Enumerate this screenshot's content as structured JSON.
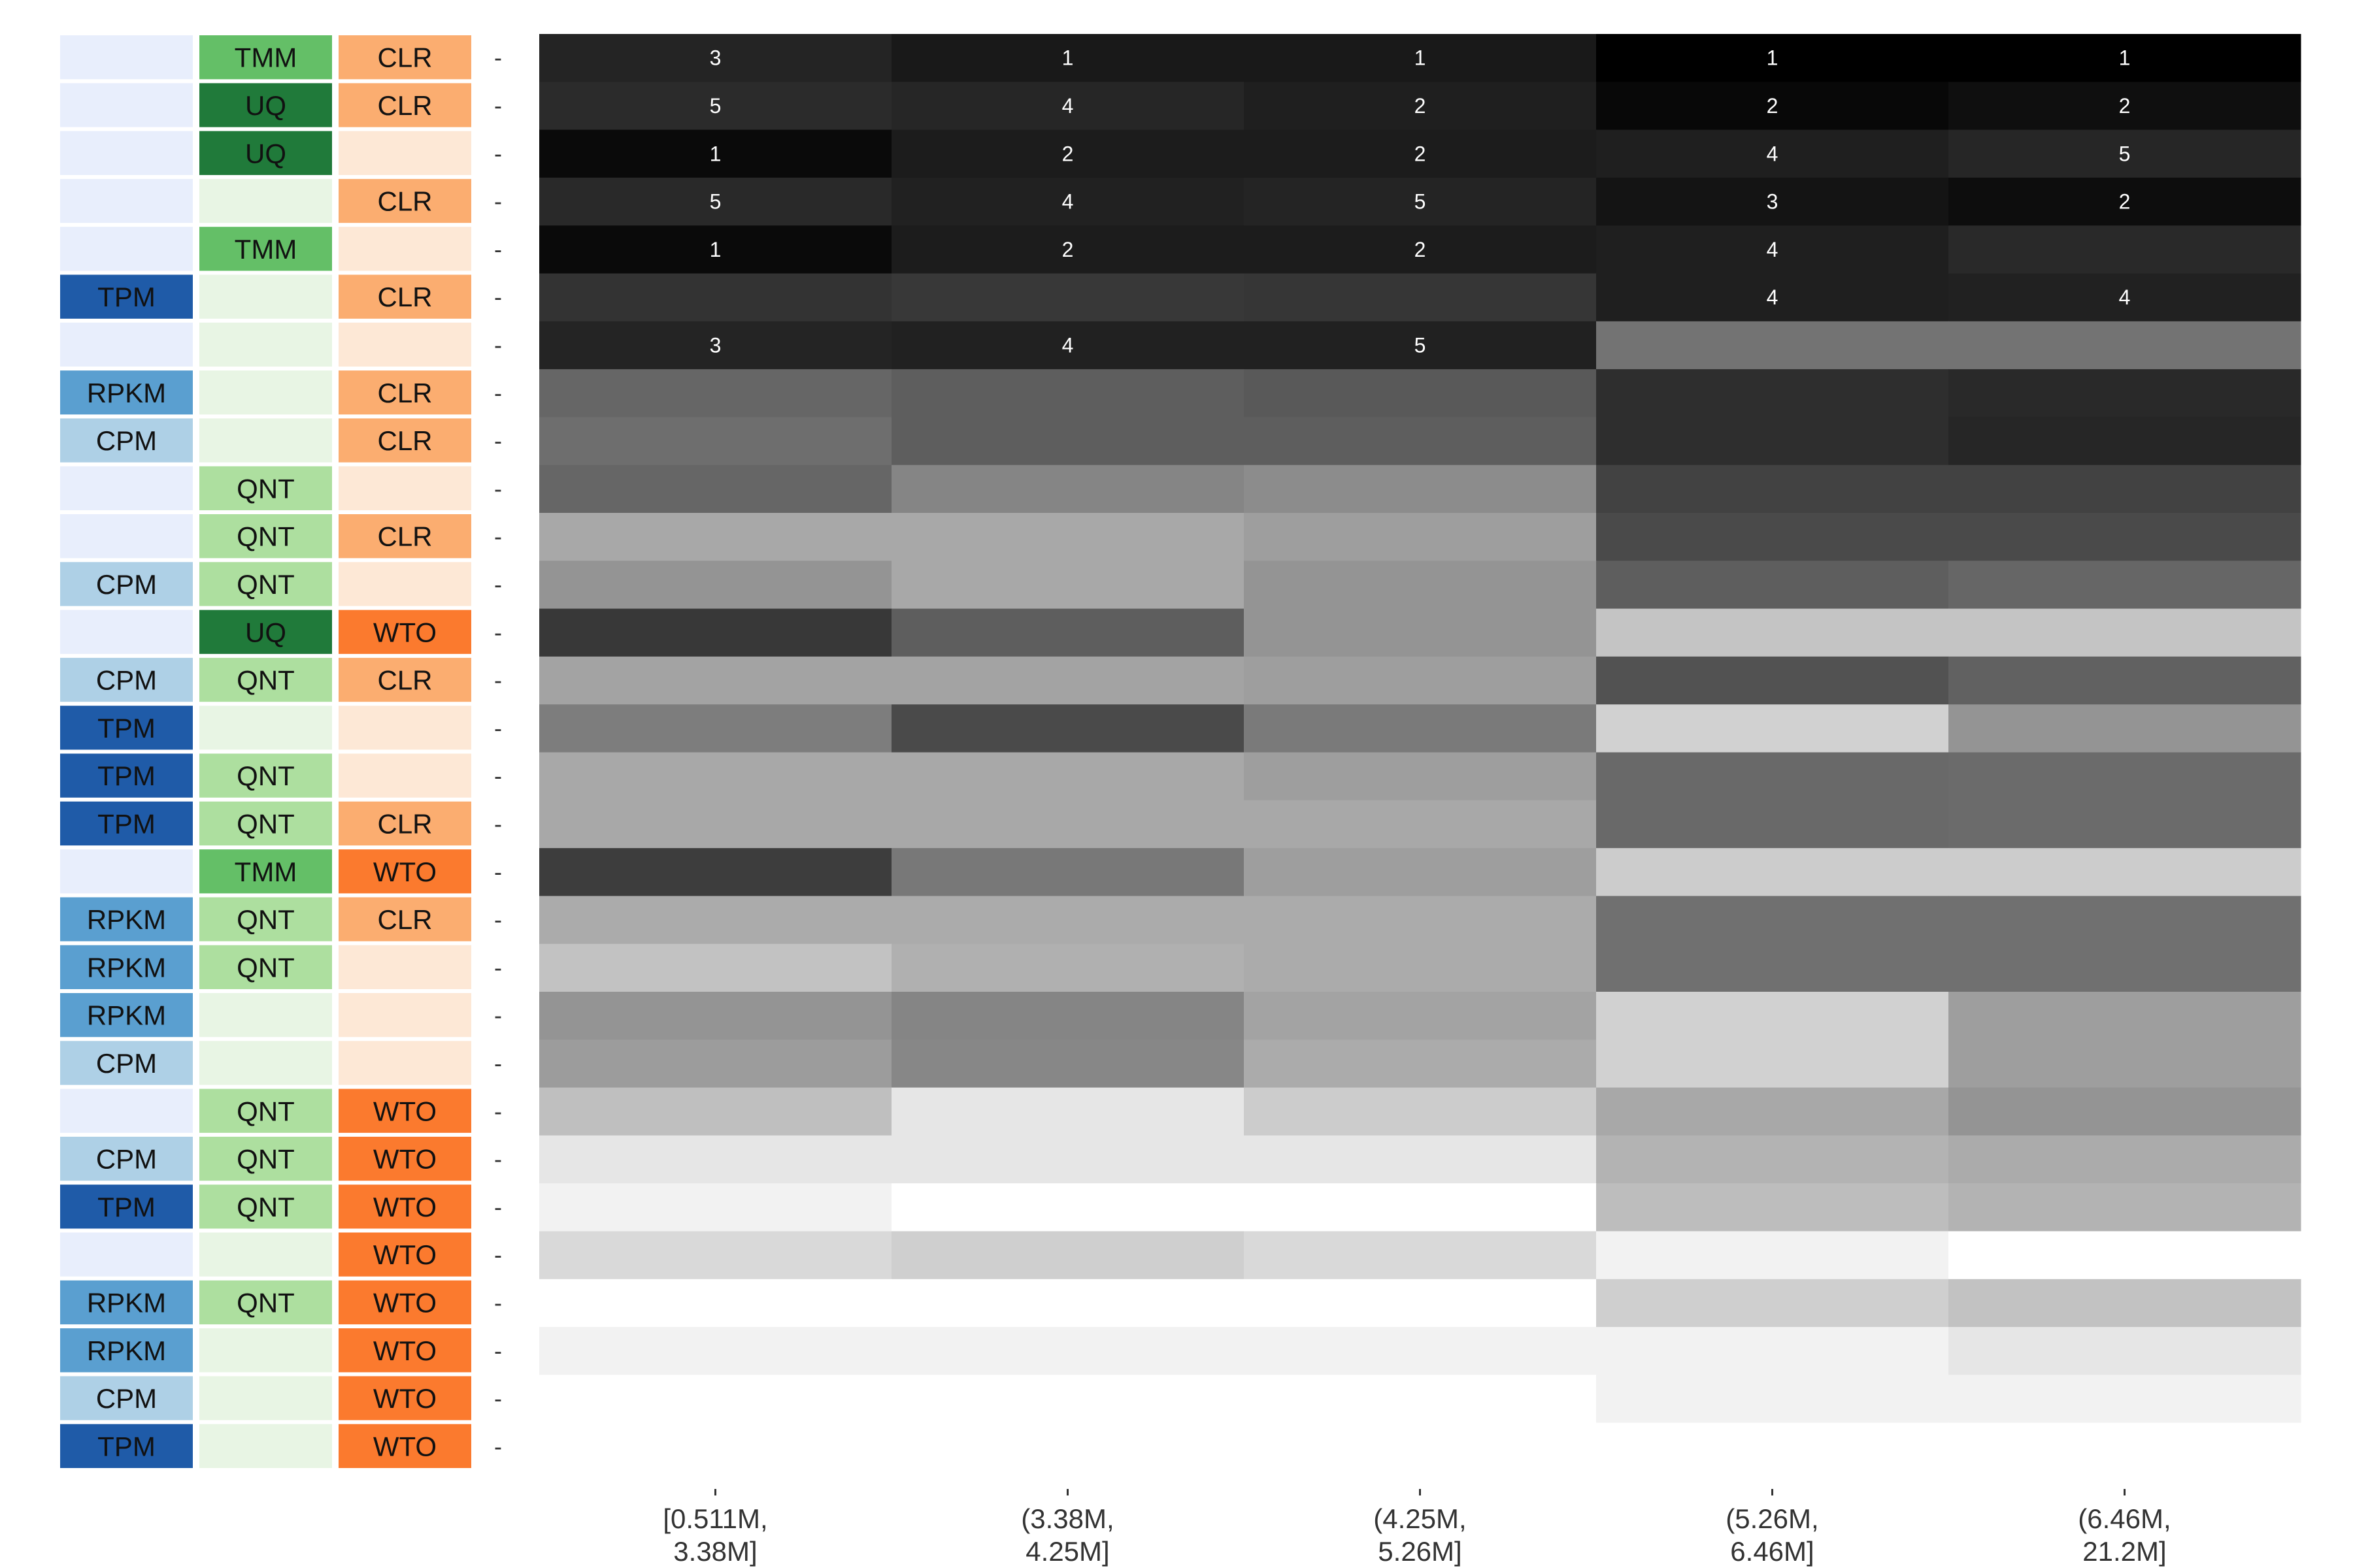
{
  "chart_data": {
    "type": "heatmap",
    "title": "",
    "xlabel": "",
    "ylabel": "",
    "categories": [
      "[0.511M,\n3.38M]",
      "(3.38M,\n4.25M]",
      "(4.25M,\n5.26M]",
      "(5.26M,\n6.46M]",
      "(6.46M,\n21.2M]"
    ],
    "method_labels": {
      "norm1_colors": {
        "TPM": "#1f5ba8",
        "RPKM": "#5a9fd0",
        "CPM": "#aed0e6",
        "": "#e8eefc"
      },
      "norm2_colors": {
        "TMM": "#64bf67",
        "UQ": "#207a3a",
        "QNT": "#addf9f",
        "": "#e8f5e4"
      },
      "norm3_colors": {
        "CLR": "#fbad70",
        "WTO": "#fb7a2e",
        "": "#fde8d6"
      }
    },
    "rows": [
      {
        "n1": "",
        "n2": "TMM",
        "n3": "CLR",
        "row_label": "-",
        "cells": [
          {
            "v": 0.86,
            "rank": "3"
          },
          {
            "v": 0.9,
            "rank": "1"
          },
          {
            "v": 0.9,
            "rank": "1"
          },
          {
            "v": 1.0,
            "rank": "1"
          },
          {
            "v": 1.0,
            "rank": "1"
          }
        ]
      },
      {
        "n1": "",
        "n2": "UQ",
        "n3": "CLR",
        "row_label": "-",
        "cells": [
          {
            "v": 0.83,
            "rank": "5"
          },
          {
            "v": 0.85,
            "rank": "4"
          },
          {
            "v": 0.88,
            "rank": "2"
          },
          {
            "v": 0.97,
            "rank": "2"
          },
          {
            "v": 0.94,
            "rank": "2"
          }
        ]
      },
      {
        "n1": "",
        "n2": "UQ",
        "n3": "",
        "row_label": "-",
        "cells": [
          {
            "v": 0.96,
            "rank": "1"
          },
          {
            "v": 0.89,
            "rank": "2"
          },
          {
            "v": 0.89,
            "rank": "2"
          },
          {
            "v": 0.88,
            "rank": "4"
          },
          {
            "v": 0.85,
            "rank": "5"
          }
        ]
      },
      {
        "n1": "",
        "n2": "",
        "n3": "CLR",
        "row_label": "-",
        "cells": [
          {
            "v": 0.84,
            "rank": "5"
          },
          {
            "v": 0.87,
            "rank": "4"
          },
          {
            "v": 0.86,
            "rank": "5"
          },
          {
            "v": 0.92,
            "rank": "3"
          },
          {
            "v": 0.95,
            "rank": "2"
          }
        ]
      },
      {
        "n1": "",
        "n2": "TMM",
        "n3": "",
        "row_label": "-",
        "cells": [
          {
            "v": 0.96,
            "rank": "1"
          },
          {
            "v": 0.89,
            "rank": "2"
          },
          {
            "v": 0.89,
            "rank": "2"
          },
          {
            "v": 0.88,
            "rank": "4"
          },
          {
            "v": 0.84,
            "rank": ""
          }
        ]
      },
      {
        "n1": "TPM",
        "n2": "",
        "n3": "CLR",
        "row_label": "-",
        "cells": [
          {
            "v": 0.8,
            "rank": ""
          },
          {
            "v": 0.78,
            "rank": ""
          },
          {
            "v": 0.79,
            "rank": ""
          },
          {
            "v": 0.88,
            "rank": "4"
          },
          {
            "v": 0.87,
            "rank": "4"
          }
        ]
      },
      {
        "n1": "",
        "n2": "",
        "n3": "",
        "row_label": "-",
        "cells": [
          {
            "v": 0.86,
            "rank": "3"
          },
          {
            "v": 0.87,
            "rank": "4"
          },
          {
            "v": 0.87,
            "rank": "5"
          },
          {
            "v": 0.55,
            "rank": ""
          },
          {
            "v": 0.55,
            "rank": ""
          }
        ]
      },
      {
        "n1": "RPKM",
        "n2": "",
        "n3": "CLR",
        "row_label": "-",
        "cells": [
          {
            "v": 0.6,
            "rank": ""
          },
          {
            "v": 0.63,
            "rank": ""
          },
          {
            "v": 0.65,
            "rank": ""
          },
          {
            "v": 0.82,
            "rank": ""
          },
          {
            "v": 0.84,
            "rank": ""
          }
        ]
      },
      {
        "n1": "CPM",
        "n2": "",
        "n3": "CLR",
        "row_label": "-",
        "cells": [
          {
            "v": 0.57,
            "rank": ""
          },
          {
            "v": 0.63,
            "rank": ""
          },
          {
            "v": 0.63,
            "rank": ""
          },
          {
            "v": 0.82,
            "rank": ""
          },
          {
            "v": 0.85,
            "rank": ""
          }
        ]
      },
      {
        "n1": "",
        "n2": "QNT",
        "n3": "",
        "row_label": "-",
        "cells": [
          {
            "v": 0.6,
            "rank": ""
          },
          {
            "v": 0.48,
            "rank": ""
          },
          {
            "v": 0.45,
            "rank": ""
          },
          {
            "v": 0.74,
            "rank": ""
          },
          {
            "v": 0.74,
            "rank": ""
          }
        ]
      },
      {
        "n1": "",
        "n2": "QNT",
        "n3": "CLR",
        "row_label": "-",
        "cells": [
          {
            "v": 0.34,
            "rank": ""
          },
          {
            "v": 0.34,
            "rank": ""
          },
          {
            "v": 0.38,
            "rank": ""
          },
          {
            "v": 0.71,
            "rank": ""
          },
          {
            "v": 0.71,
            "rank": ""
          }
        ]
      },
      {
        "n1": "CPM",
        "n2": "QNT",
        "n3": "",
        "row_label": "-",
        "cells": [
          {
            "v": 0.42,
            "rank": ""
          },
          {
            "v": 0.34,
            "rank": ""
          },
          {
            "v": 0.42,
            "rank": ""
          },
          {
            "v": 0.63,
            "rank": ""
          },
          {
            "v": 0.6,
            "rank": ""
          }
        ]
      },
      {
        "n1": "",
        "n2": "UQ",
        "n3": "WTO",
        "row_label": "-",
        "cells": [
          {
            "v": 0.78,
            "rank": ""
          },
          {
            "v": 0.63,
            "rank": ""
          },
          {
            "v": 0.42,
            "rank": ""
          },
          {
            "v": 0.23,
            "rank": ""
          },
          {
            "v": 0.23,
            "rank": ""
          }
        ]
      },
      {
        "n1": "CPM",
        "n2": "QNT",
        "n3": "CLR",
        "row_label": "-",
        "cells": [
          {
            "v": 0.36,
            "rank": ""
          },
          {
            "v": 0.36,
            "rank": ""
          },
          {
            "v": 0.38,
            "rank": ""
          },
          {
            "v": 0.68,
            "rank": ""
          },
          {
            "v": 0.62,
            "rank": ""
          }
        ]
      },
      {
        "n1": "TPM",
        "n2": "",
        "n3": "",
        "row_label": "-",
        "cells": [
          {
            "v": 0.51,
            "rank": ""
          },
          {
            "v": 0.71,
            "rank": ""
          },
          {
            "v": 0.52,
            "rank": ""
          },
          {
            "v": 0.18,
            "rank": ""
          },
          {
            "v": 0.42,
            "rank": ""
          }
        ]
      },
      {
        "n1": "TPM",
        "n2": "QNT",
        "n3": "",
        "row_label": "-",
        "cells": [
          {
            "v": 0.34,
            "rank": ""
          },
          {
            "v": 0.34,
            "rank": ""
          },
          {
            "v": 0.38,
            "rank": ""
          },
          {
            "v": 0.59,
            "rank": ""
          },
          {
            "v": 0.58,
            "rank": ""
          }
        ]
      },
      {
        "n1": "TPM",
        "n2": "QNT",
        "n3": "CLR",
        "row_label": "-",
        "cells": [
          {
            "v": 0.34,
            "rank": ""
          },
          {
            "v": 0.34,
            "rank": ""
          },
          {
            "v": 0.34,
            "rank": ""
          },
          {
            "v": 0.59,
            "rank": ""
          },
          {
            "v": 0.58,
            "rank": ""
          }
        ]
      },
      {
        "n1": "",
        "n2": "TMM",
        "n3": "WTO",
        "row_label": "-",
        "cells": [
          {
            "v": 0.76,
            "rank": ""
          },
          {
            "v": 0.53,
            "rank": ""
          },
          {
            "v": 0.38,
            "rank": ""
          },
          {
            "v": 0.2,
            "rank": ""
          },
          {
            "v": 0.2,
            "rank": ""
          }
        ]
      },
      {
        "n1": "RPKM",
        "n2": "QNT",
        "n3": "CLR",
        "row_label": "-",
        "cells": [
          {
            "v": 0.33,
            "rank": ""
          },
          {
            "v": 0.33,
            "rank": ""
          },
          {
            "v": 0.33,
            "rank": ""
          },
          {
            "v": 0.56,
            "rank": ""
          },
          {
            "v": 0.56,
            "rank": ""
          }
        ]
      },
      {
        "n1": "RPKM",
        "n2": "QNT",
        "n3": "",
        "row_label": "-",
        "cells": [
          {
            "v": 0.24,
            "rank": ""
          },
          {
            "v": 0.31,
            "rank": ""
          },
          {
            "v": 0.33,
            "rank": ""
          },
          {
            "v": 0.56,
            "rank": ""
          },
          {
            "v": 0.56,
            "rank": ""
          }
        ]
      },
      {
        "n1": "RPKM",
        "n2": "",
        "n3": "",
        "row_label": "-",
        "cells": [
          {
            "v": 0.42,
            "rank": ""
          },
          {
            "v": 0.48,
            "rank": ""
          },
          {
            "v": 0.36,
            "rank": ""
          },
          {
            "v": 0.18,
            "rank": ""
          },
          {
            "v": 0.38,
            "rank": ""
          }
        ]
      },
      {
        "n1": "CPM",
        "n2": "",
        "n3": "",
        "row_label": "-",
        "cells": [
          {
            "v": 0.39,
            "rank": ""
          },
          {
            "v": 0.47,
            "rank": ""
          },
          {
            "v": 0.33,
            "rank": ""
          },
          {
            "v": 0.18,
            "rank": ""
          },
          {
            "v": 0.38,
            "rank": ""
          }
        ]
      },
      {
        "n1": "",
        "n2": "QNT",
        "n3": "WTO",
        "row_label": "-",
        "cells": [
          {
            "v": 0.25,
            "rank": ""
          },
          {
            "v": 0.1,
            "rank": ""
          },
          {
            "v": 0.2,
            "rank": ""
          },
          {
            "v": 0.34,
            "rank": ""
          },
          {
            "v": 0.42,
            "rank": ""
          }
        ]
      },
      {
        "n1": "CPM",
        "n2": "QNT",
        "n3": "WTO",
        "row_label": "-",
        "cells": [
          {
            "v": 0.1,
            "rank": ""
          },
          {
            "v": 0.1,
            "rank": ""
          },
          {
            "v": 0.1,
            "rank": ""
          },
          {
            "v": 0.3,
            "rank": ""
          },
          {
            "v": 0.33,
            "rank": ""
          }
        ]
      },
      {
        "n1": "TPM",
        "n2": "QNT",
        "n3": "WTO",
        "row_label": "-",
        "cells": [
          {
            "v": 0.05,
            "rank": ""
          },
          {
            "v": 0.0,
            "rank": ""
          },
          {
            "v": 0.0,
            "rank": ""
          },
          {
            "v": 0.26,
            "rank": ""
          },
          {
            "v": 0.3,
            "rank": ""
          }
        ]
      },
      {
        "n1": "",
        "n2": "",
        "n3": "WTO",
        "row_label": "-",
        "cells": [
          {
            "v": 0.15,
            "rank": ""
          },
          {
            "v": 0.19,
            "rank": ""
          },
          {
            "v": 0.15,
            "rank": ""
          },
          {
            "v": 0.05,
            "rank": ""
          },
          {
            "v": 0.0,
            "rank": ""
          }
        ]
      },
      {
        "n1": "RPKM",
        "n2": "QNT",
        "n3": "WTO",
        "row_label": "-",
        "cells": [
          {
            "v": 0.0,
            "rank": ""
          },
          {
            "v": 0.0,
            "rank": ""
          },
          {
            "v": 0.0,
            "rank": ""
          },
          {
            "v": 0.19,
            "rank": ""
          },
          {
            "v": 0.24,
            "rank": ""
          }
        ]
      },
      {
        "n1": "RPKM",
        "n2": "",
        "n3": "WTO",
        "row_label": "-",
        "cells": [
          {
            "v": 0.05,
            "rank": ""
          },
          {
            "v": 0.05,
            "rank": ""
          },
          {
            "v": 0.05,
            "rank": ""
          },
          {
            "v": 0.05,
            "rank": ""
          },
          {
            "v": 0.1,
            "rank": ""
          }
        ]
      },
      {
        "n1": "CPM",
        "n2": "",
        "n3": "WTO",
        "row_label": "-",
        "cells": [
          {
            "v": 0.0,
            "rank": ""
          },
          {
            "v": 0.0,
            "rank": ""
          },
          {
            "v": 0.0,
            "rank": ""
          },
          {
            "v": 0.05,
            "rank": ""
          },
          {
            "v": 0.05,
            "rank": ""
          }
        ]
      },
      {
        "n1": "TPM",
        "n2": "",
        "n3": "WTO",
        "row_label": "-",
        "cells": [
          {
            "v": 0.0,
            "rank": ""
          },
          {
            "v": 0.0,
            "rank": ""
          },
          {
            "v": 0.0,
            "rank": ""
          },
          {
            "v": 0.0,
            "rank": ""
          },
          {
            "v": 0.0,
            "rank": ""
          }
        ]
      }
    ]
  }
}
